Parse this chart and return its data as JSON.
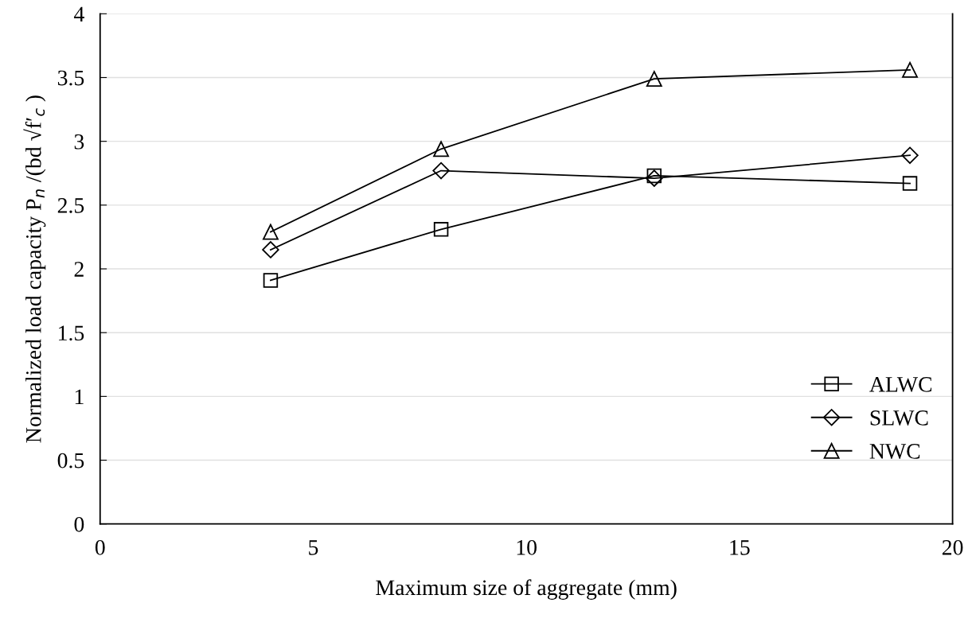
{
  "chart_data": {
    "type": "line",
    "xlabel": "Maximum size of aggregate (mm)",
    "ylabel": "Normalized load capacity P$_{n}$ /(bd √f′$_{c}$ )",
    "x": [
      4,
      8,
      13,
      19
    ],
    "series": [
      {
        "name": "ALWC",
        "color": "#000000",
        "marker": "square",
        "values": [
          1.91,
          2.31,
          2.73,
          2.67
        ]
      },
      {
        "name": "SLWC",
        "color": "#000000",
        "marker": "diamond",
        "values": [
          2.15,
          2.77,
          2.71,
          2.89
        ]
      },
      {
        "name": "NWC",
        "color": "#000000",
        "marker": "triangle",
        "values": [
          2.29,
          2.94,
          3.49,
          3.56
        ]
      }
    ],
    "xlim": [
      0,
      20
    ],
    "xticks": [
      0,
      5,
      10,
      15,
      20
    ],
    "ylim": [
      0,
      4
    ],
    "yticks": [
      0,
      0.5,
      1,
      1.5,
      2,
      2.5,
      3,
      3.5,
      4
    ],
    "grid": "y",
    "legend": "bottom right",
    "line_style": "solid"
  }
}
